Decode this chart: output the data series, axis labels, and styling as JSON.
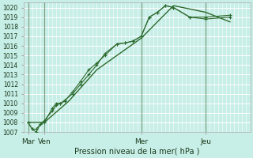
{
  "bg_color": "#c8eee8",
  "grid_color": "#ffffff",
  "line_color": "#2d6a2d",
  "vline_color": "#7a9a7a",
  "xlabel": "Pression niveau de la mer( hPa )",
  "ylim": [
    1007,
    1020.5
  ],
  "yticks": [
    1007,
    1008,
    1009,
    1010,
    1011,
    1012,
    1013,
    1014,
    1015,
    1016,
    1017,
    1018,
    1019,
    1020
  ],
  "xtick_labels": [
    "Mar",
    "Ven",
    "Mer",
    "Jeu"
  ],
  "xtick_positions": [
    0,
    8,
    56,
    88
  ],
  "vline_positions": [
    0,
    8,
    56,
    88
  ],
  "xlim": [
    -2,
    110
  ],
  "series1": [
    [
      0,
      1008.0
    ],
    [
      2,
      1007.3
    ],
    [
      4,
      1007.3
    ],
    [
      6,
      1007.8
    ],
    [
      8,
      1008.2
    ],
    [
      12,
      1009.2
    ],
    [
      14,
      1009.8
    ],
    [
      16,
      1010.0
    ],
    [
      18,
      1010.2
    ],
    [
      22,
      1011.2
    ],
    [
      26,
      1012.3
    ],
    [
      30,
      1013.5
    ],
    [
      34,
      1014.2
    ],
    [
      38,
      1015.0
    ],
    [
      44,
      1016.2
    ],
    [
      48,
      1016.3
    ],
    [
      52,
      1016.5
    ],
    [
      56,
      1017.0
    ],
    [
      60,
      1019.0
    ],
    [
      64,
      1019.5
    ],
    [
      68,
      1020.2
    ],
    [
      72,
      1020.0
    ],
    [
      80,
      1019.0
    ],
    [
      88,
      1019.0
    ],
    [
      100,
      1019.2
    ]
  ],
  "series2": [
    [
      0,
      1008.0
    ],
    [
      2,
      1007.3
    ],
    [
      4,
      1007.0
    ],
    [
      6,
      1007.8
    ],
    [
      8,
      1008.0
    ],
    [
      12,
      1009.5
    ],
    [
      14,
      1010.0
    ],
    [
      16,
      1010.0
    ],
    [
      18,
      1010.3
    ],
    [
      22,
      1011.0
    ],
    [
      26,
      1012.0
    ],
    [
      30,
      1013.0
    ],
    [
      34,
      1014.0
    ],
    [
      38,
      1015.2
    ],
    [
      44,
      1016.2
    ],
    [
      48,
      1016.3
    ],
    [
      52,
      1016.5
    ],
    [
      56,
      1017.0
    ],
    [
      60,
      1019.0
    ],
    [
      64,
      1019.5
    ],
    [
      68,
      1020.2
    ],
    [
      72,
      1020.0
    ],
    [
      80,
      1019.0
    ],
    [
      88,
      1018.8
    ],
    [
      100,
      1019.0
    ]
  ],
  "series3": [
    [
      0,
      1008.0
    ],
    [
      8,
      1008.0
    ],
    [
      20,
      1010.2
    ],
    [
      34,
      1013.5
    ],
    [
      56,
      1016.8
    ],
    [
      72,
      1020.2
    ],
    [
      88,
      1019.5
    ],
    [
      100,
      1018.5
    ]
  ]
}
